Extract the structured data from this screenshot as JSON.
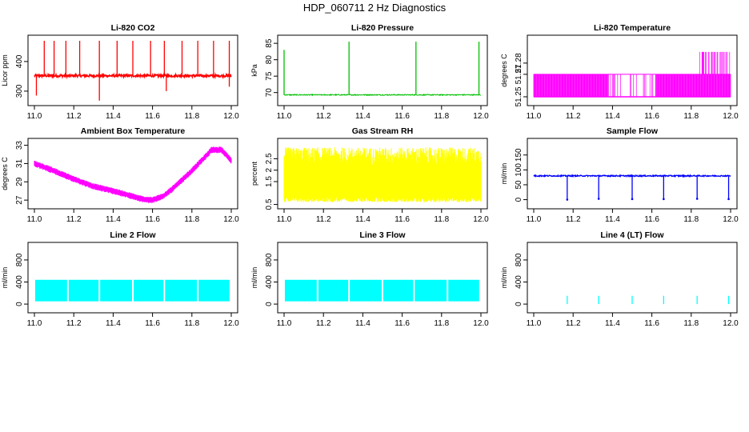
{
  "figure_title": "HDP_060711  2 Hz Diagnostics",
  "colors": {
    "red": "#ff0000",
    "green": "#00c000",
    "magenta": "#ff00ff",
    "yellow": "#ffff00",
    "blue": "#0000ff",
    "cyan": "#00ffff"
  },
  "chart_data": [
    {
      "id": "co2",
      "type": "line",
      "title": "Li-820 CO2",
      "ylabel": "Licor ppm",
      "xlabel": "",
      "color": "#ff0000",
      "xlim": [
        11.0,
        12.0
      ],
      "ylim": [
        262,
        478
      ],
      "xticks": [
        "11.0",
        "11.2",
        "11.4",
        "11.6",
        "11.8",
        "12.0"
      ],
      "yticks": [
        300,
        400
      ],
      "series": [
        {
          "baseline": 352,
          "noise": 4,
          "spikes": [
            {
              "x": 11.05,
              "y": 470
            },
            {
              "x": 11.1,
              "y": 470
            },
            {
              "x": 11.16,
              "y": 470
            },
            {
              "x": 11.23,
              "y": 470
            },
            {
              "x": 11.33,
              "y": 470
            },
            {
              "x": 11.42,
              "y": 470
            },
            {
              "x": 11.5,
              "y": 470
            },
            {
              "x": 11.59,
              "y": 470
            },
            {
              "x": 11.66,
              "y": 470
            },
            {
              "x": 11.75,
              "y": 470
            },
            {
              "x": 11.83,
              "y": 470
            },
            {
              "x": 11.91,
              "y": 470
            },
            {
              "x": 11.99,
              "y": 470
            },
            {
              "x": 11.33,
              "y": 268
            },
            {
              "x": 11.01,
              "y": 285
            },
            {
              "x": 11.67,
              "y": 300
            },
            {
              "x": 11.99,
              "y": 315
            }
          ]
        }
      ]
    },
    {
      "id": "pressure",
      "type": "line",
      "title": "Li-820 Pressure",
      "ylabel": "kPa",
      "xlabel": "",
      "color": "#00c000",
      "xlim": [
        11.0,
        12.0
      ],
      "ylim": [
        67,
        86.5
      ],
      "xticks": [
        "11.0",
        "11.2",
        "11.4",
        "11.6",
        "11.8",
        "12.0"
      ],
      "yticks": [
        70,
        75,
        80,
        85
      ],
      "series": [
        {
          "baseline": 69.3,
          "noise": 0.15,
          "spikes": [
            {
              "x": 11.0,
              "y": 83
            },
            {
              "x": 11.33,
              "y": 85.5
            },
            {
              "x": 11.67,
              "y": 85.5
            },
            {
              "x": 11.99,
              "y": 85.5
            }
          ]
        }
      ]
    },
    {
      "id": "licor_temp",
      "type": "line",
      "title": "Li-820 Temperature",
      "ylabel": "degrees C",
      "xlabel": "",
      "color": "#ff00ff",
      "xlim": [
        11.0,
        12.0
      ],
      "ylim": [
        51.245,
        51.302
      ],
      "xticks": [
        "11.0",
        "11.2",
        "11.4",
        "11.6",
        "11.8",
        "12.0"
      ],
      "yticks": [
        51.25,
        51.27,
        51.28
      ],
      "levels": [
        51.25,
        51.27,
        51.29
      ]
    },
    {
      "id": "box_temp",
      "type": "line",
      "title": "Ambient Box Temperature",
      "ylabel": "degrees C",
      "xlabel": "",
      "color": "#ff00ff",
      "xlim": [
        11.0,
        12.0
      ],
      "ylim": [
        26.4,
        33.4
      ],
      "xticks": [
        "11.0",
        "11.2",
        "11.4",
        "11.6",
        "11.8",
        "12.0"
      ],
      "yticks": [
        27,
        29,
        31,
        33
      ],
      "series": [
        {
          "points": [
            [
              11.0,
              31.0
            ],
            [
              11.1,
              30.2
            ],
            [
              11.2,
              29.3
            ],
            [
              11.3,
              28.5
            ],
            [
              11.4,
              28.0
            ],
            [
              11.5,
              27.4
            ],
            [
              11.55,
              27.1
            ],
            [
              11.6,
              27.0
            ],
            [
              11.65,
              27.4
            ],
            [
              11.7,
              28.2
            ],
            [
              11.8,
              30.2
            ],
            [
              11.9,
              32.5
            ],
            [
              11.95,
              32.5
            ],
            [
              12.0,
              31.3
            ]
          ],
          "band": 0.35
        }
      ]
    },
    {
      "id": "rh",
      "type": "line",
      "title": "Gas Stream RH",
      "ylabel": "percent",
      "xlabel": "",
      "color": "#ffff00",
      "xlim": [
        11.0,
        12.0
      ],
      "ylim": [
        0.45,
        3.25
      ],
      "xticks": [
        "11.0",
        "11.2",
        "11.4",
        "11.6",
        "11.8",
        "12.0"
      ],
      "yticks": [
        0.5,
        1.5,
        2.0,
        2.5
      ],
      "series": [
        {
          "low": 0.6,
          "mid_low": 0.85,
          "mid_high": 2.2,
          "high": 3.0
        }
      ]
    },
    {
      "id": "sample_flow",
      "type": "line",
      "title": "Sample Flow",
      "ylabel": "ml/min",
      "xlabel": "",
      "color": "#0000ff",
      "xlim": [
        11.0,
        12.0
      ],
      "ylim": [
        -20,
        195
      ],
      "xticks": [
        "11.0",
        "11.2",
        "11.4",
        "11.6",
        "11.8",
        "12.0"
      ],
      "yticks": [
        0,
        50,
        100,
        150
      ],
      "series": [
        {
          "baseline": 80,
          "dips": [
            {
              "x": 11.17,
              "y": 0
            },
            {
              "x": 11.33,
              "y": 3
            },
            {
              "x": 11.5,
              "y": 2
            },
            {
              "x": 11.66,
              "y": 2
            },
            {
              "x": 11.83,
              "y": 3
            },
            {
              "x": 11.99,
              "y": 2
            }
          ]
        }
      ]
    },
    {
      "id": "line2",
      "type": "area",
      "title": "Line 2 Flow",
      "ylabel": "ml/min",
      "xlabel": "",
      "color": "#00ffff",
      "xlim": [
        11.0,
        12.0
      ],
      "ylim": [
        -100,
        1060
      ],
      "xticks": [
        "11.0",
        "11.2",
        "11.4",
        "11.6",
        "11.8",
        "12.0"
      ],
      "yticks": [
        0,
        400,
        800
      ],
      "series": [
        {
          "low": 50,
          "high": 440,
          "gaps": [
            11.17,
            11.33,
            11.5,
            11.66,
            11.83
          ]
        }
      ]
    },
    {
      "id": "line3",
      "type": "area",
      "title": "Line 3 Flow",
      "ylabel": "ml/min",
      "xlabel": "",
      "color": "#00ffff",
      "xlim": [
        11.0,
        12.0
      ],
      "ylim": [
        -100,
        1060
      ],
      "xticks": [
        "11.0",
        "11.2",
        "11.4",
        "11.6",
        "11.8",
        "12.0"
      ],
      "yticks": [
        0,
        400,
        800
      ],
      "series": [
        {
          "low": 50,
          "high": 440,
          "gaps": [
            11.17,
            11.33,
            11.5,
            11.66,
            11.83
          ]
        }
      ]
    },
    {
      "id": "line4",
      "type": "line",
      "title": "Line 4 (LT) Flow",
      "ylabel": "ml/min",
      "xlabel": "",
      "color": "#00ffff",
      "xlim": [
        11.0,
        12.0
      ],
      "ylim": [
        -100,
        1060
      ],
      "xticks": [
        "11.0",
        "11.2",
        "11.4",
        "11.6",
        "11.8",
        "12.0"
      ],
      "yticks": [
        0,
        400,
        800
      ],
      "series": [
        {
          "baseline": 0,
          "spikes": [
            {
              "x": 11.17,
              "y": 150
            },
            {
              "x": 11.33,
              "y": 150
            },
            {
              "x": 11.5,
              "y": 150
            },
            {
              "x": 11.66,
              "y": 150
            },
            {
              "x": 11.83,
              "y": 150
            },
            {
              "x": 11.99,
              "y": 150
            }
          ]
        }
      ]
    }
  ]
}
